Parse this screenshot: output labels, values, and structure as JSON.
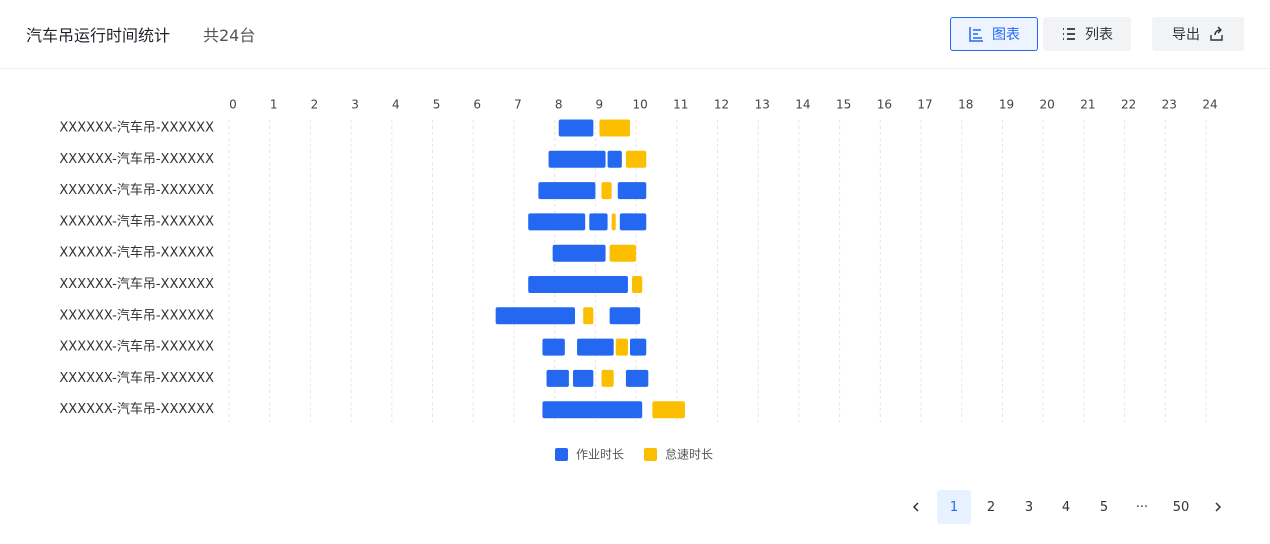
{
  "header": {
    "title": "汽车吊运行时间统计",
    "count": "共24台"
  },
  "toolbar": {
    "buttons": [
      {
        "label": "图表",
        "active": true
      },
      {
        "label": "列表",
        "active": false
      },
      {
        "label": "导出",
        "active": false
      }
    ]
  },
  "chart_data": {
    "type": "gantt",
    "categories": [
      "XXXXXX-汽车吊-XXXXXX",
      "XXXXXX-汽车吊-XXXXXX",
      "XXXXXX-汽车吊-XXXXXX",
      "XXXXXX-汽车吊-XXXXXX",
      "XXXXXX-汽车吊-XXXXXX",
      "XXXXXX-汽车吊-XXXXXX",
      "XXXXXX-汽车吊-XXXXXX",
      "XXXXXX-汽车吊-XXXXXX",
      "XXXXXX-汽车吊-XXXXXX",
      "XXXXXX-汽车吊-XXXXXX"
    ],
    "xlim": [
      0,
      24
    ],
    "xticks": [
      0,
      1,
      2,
      3,
      4,
      5,
      6,
      7,
      8,
      9,
      10,
      11,
      12,
      13,
      14,
      15,
      16,
      17,
      18,
      19,
      20,
      21,
      22,
      23,
      24
    ],
    "grid": true,
    "series": [
      {
        "name": "作业时长",
        "color": "#2468f2",
        "values": [
          [
            [
              8.1,
              8.95
            ]
          ],
          [
            [
              7.85,
              9.25
            ],
            [
              9.3,
              9.65
            ]
          ],
          [
            [
              7.6,
              9.0
            ],
            [
              9.55,
              10.25
            ]
          ],
          [
            [
              7.35,
              8.75
            ],
            [
              8.85,
              9.3
            ],
            [
              9.6,
              10.25
            ]
          ],
          [
            [
              7.95,
              9.25
            ]
          ],
          [
            [
              7.35,
              9.8
            ]
          ],
          [
            [
              6.55,
              8.5
            ],
            [
              9.35,
              10.1
            ]
          ],
          [
            [
              7.7,
              8.25
            ],
            [
              8.55,
              9.45
            ],
            [
              9.85,
              10.25
            ]
          ],
          [
            [
              7.8,
              8.35
            ],
            [
              8.45,
              8.95
            ],
            [
              9.75,
              10.3
            ]
          ],
          [
            [
              7.7,
              10.15
            ]
          ]
        ]
      },
      {
        "name": "怠速时长",
        "color": "#fcbf00",
        "values": [
          [
            [
              9.1,
              9.85
            ]
          ],
          [
            [
              9.75,
              10.25
            ]
          ],
          [
            [
              9.15,
              9.4
            ]
          ],
          [
            [
              9.4,
              9.5
            ]
          ],
          [
            [
              9.35,
              10.0
            ]
          ],
          [
            [
              9.9,
              10.15
            ]
          ],
          [
            [
              8.7,
              8.95
            ]
          ],
          [
            [
              9.5,
              9.8
            ]
          ],
          [
            [
              9.15,
              9.45
            ]
          ],
          [
            [
              10.4,
              11.2
            ]
          ]
        ]
      }
    ]
  },
  "pagination": {
    "pages": [
      "1",
      "2",
      "3",
      "4",
      "5",
      "···",
      "50"
    ],
    "current": "1"
  }
}
